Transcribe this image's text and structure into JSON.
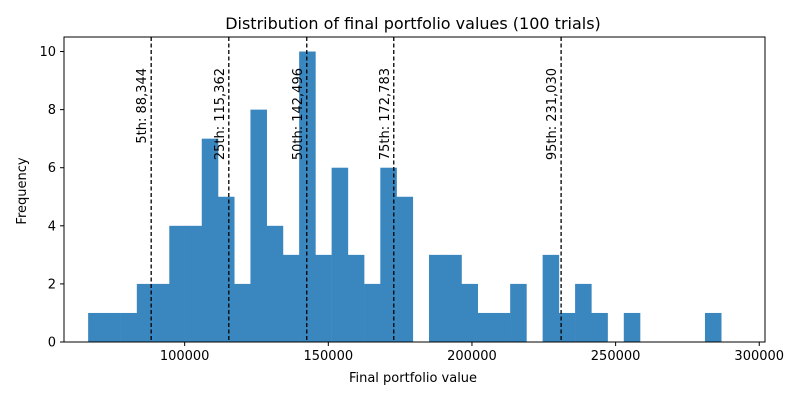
{
  "chart_data": {
    "type": "bar",
    "title": "Distribution of final portfolio values (100 trials)",
    "xlabel": "Final portfolio value",
    "ylabel": "Frequency",
    "xlim": [
      58000,
      302000
    ],
    "ylim": [
      0,
      10.5
    ],
    "x_ticks": [
      100000,
      150000,
      200000,
      250000,
      300000
    ],
    "x_tick_labels": [
      "100000",
      "150000",
      "200000",
      "250000",
      "300000"
    ],
    "y_ticks": [
      0,
      2,
      4,
      6,
      8,
      10
    ],
    "y_tick_labels": [
      "0",
      "2",
      "4",
      "6",
      "8",
      "10"
    ],
    "bar_color": "#3a87c0",
    "bins": {
      "start": 66400,
      "width": 5650,
      "counts": [
        1,
        1,
        1,
        2,
        2,
        4,
        4,
        7,
        5,
        2,
        8,
        4,
        3,
        10,
        3,
        6,
        3,
        2,
        6,
        5,
        0,
        3,
        3,
        2,
        1,
        1,
        2,
        0,
        3,
        1,
        2,
        1,
        0,
        1,
        0,
        0,
        0,
        0,
        1
      ]
    },
    "percentiles": [
      {
        "value": 88344,
        "label": "5th: 88,344"
      },
      {
        "value": 115362,
        "label": "25th: 115,362"
      },
      {
        "value": 142496,
        "label": "50th: 142,496"
      },
      {
        "value": 172783,
        "label": "75th: 172,783"
      },
      {
        "value": 231030,
        "label": "95th: 231,030"
      }
    ]
  }
}
